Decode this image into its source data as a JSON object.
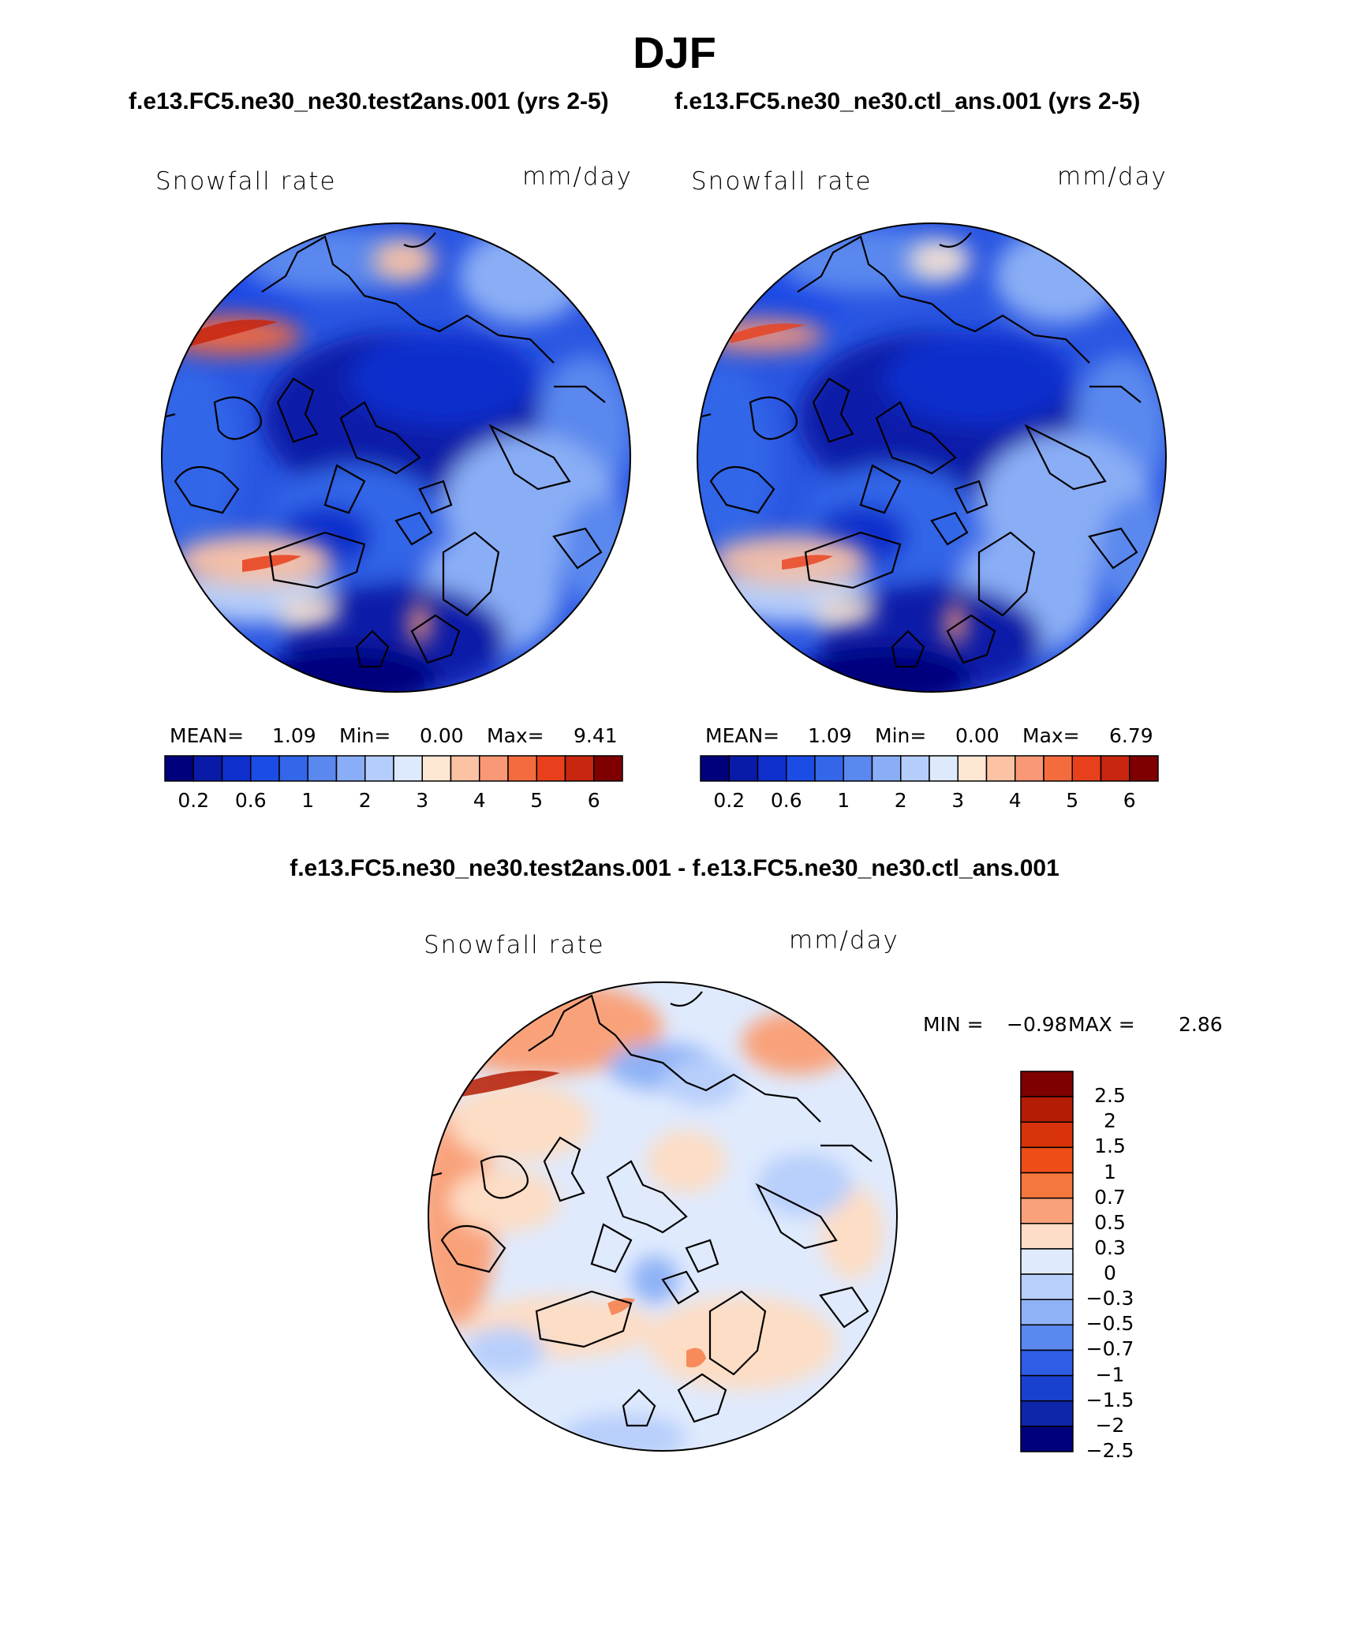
{
  "season": "DJF",
  "case_test": "f.e13.FC5.ne30_ne30.test2ans.001 (yrs 2-5)",
  "case_ctl": "f.e13.FC5.ne30_ne30.ctl_ans.001 (yrs 2-5)",
  "diff_title": "f.e13.FC5.ne30_ne30.test2ans.001 - f.e13.FC5.ne30_ne30.ctl_ans.001",
  "chart_data": [
    {
      "type": "heatmap",
      "projection": "north polar stereographic",
      "variable": "Snowfall rate",
      "units": "mm/day",
      "stats": {
        "mean_label": "MEAN=",
        "mean": "1.09",
        "min_label": "Min=",
        "min": "0.00",
        "max_label": "Max=",
        "max": "9.41"
      },
      "levels": [
        0.2,
        0.4,
        0.6,
        0.8,
        1,
        1.5,
        2,
        2.5,
        3,
        3.5,
        4,
        4.5,
        5,
        5.5,
        6
      ],
      "colorbar_ticks": [
        "0.2",
        "0.6",
        "1",
        "2",
        "3",
        "4",
        "5",
        "6"
      ],
      "colors": [
        "#00007d",
        "#0a1aa8",
        "#0f2fcc",
        "#1c4ce6",
        "#3366e8",
        "#5a88ee",
        "#8aaef5",
        "#b5cdfa",
        "#dde9fd",
        "#fde6d2",
        "#fcc2a4",
        "#f99876",
        "#f46b3e",
        "#e8401c",
        "#c8260f",
        "#7f0000"
      ]
    },
    {
      "type": "heatmap",
      "projection": "north polar stereographic",
      "variable": "Snowfall rate",
      "units": "mm/day",
      "stats": {
        "mean_label": "MEAN=",
        "mean": "1.09",
        "min_label": "Min=",
        "min": "0.00",
        "max_label": "Max=",
        "max": "6.79"
      },
      "levels": [
        0.2,
        0.4,
        0.6,
        0.8,
        1,
        1.5,
        2,
        2.5,
        3,
        3.5,
        4,
        4.5,
        5,
        5.5,
        6
      ],
      "colorbar_ticks": [
        "0.2",
        "0.6",
        "1",
        "2",
        "3",
        "4",
        "5",
        "6"
      ],
      "colors": [
        "#00007d",
        "#0a1aa8",
        "#0f2fcc",
        "#1c4ce6",
        "#3366e8",
        "#5a88ee",
        "#8aaef5",
        "#b5cdfa",
        "#dde9fd",
        "#fde6d2",
        "#fcc2a4",
        "#f99876",
        "#f46b3e",
        "#e8401c",
        "#c8260f",
        "#7f0000"
      ]
    },
    {
      "type": "heatmap",
      "projection": "north polar stereographic",
      "variable": "Snowfall rate",
      "units": "mm/day",
      "stats": {
        "min_label": "MIN =",
        "min": "−0.98",
        "max_label": "MAX =",
        "max": "2.86"
      },
      "levels": [
        -2.5,
        -2,
        -1.5,
        -1,
        -0.7,
        -0.5,
        -0.3,
        0,
        0.3,
        0.5,
        0.7,
        1,
        1.5,
        2,
        2.5
      ],
      "colorbar_ticks": [
        "2.5",
        "2",
        "1.5",
        "1",
        "0.7",
        "0.5",
        "0.3",
        "0",
        "−0.3",
        "−0.5",
        "−0.7",
        "−1",
        "−1.5",
        "−2",
        "−2.5"
      ],
      "colors_top_to_bottom": [
        "#7f0000",
        "#b51c05",
        "#d8330a",
        "#ee4d18",
        "#f5773e",
        "#f9a27a",
        "#fdddc5",
        "#dfeafd",
        "#b8cffb",
        "#8fb2f6",
        "#5a88ee",
        "#2e5de6",
        "#1a40cf",
        "#0d25a8",
        "#00007d"
      ]
    }
  ]
}
